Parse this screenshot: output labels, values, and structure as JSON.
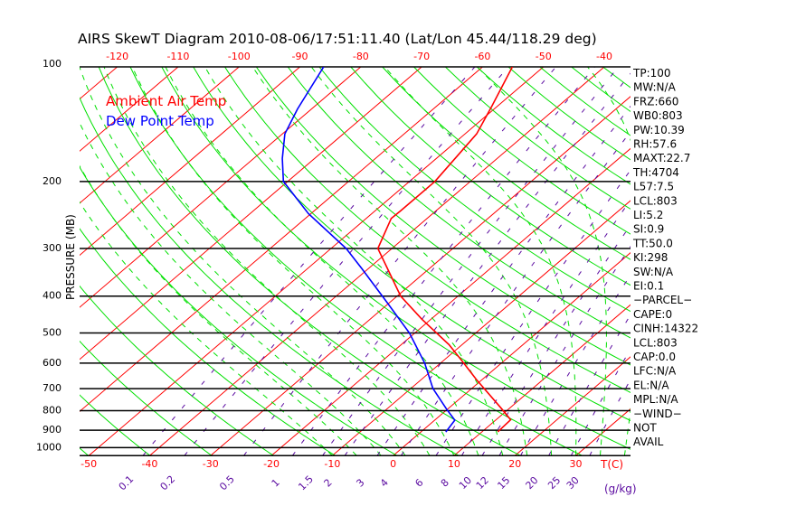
{
  "chart_data": {
    "type": "line",
    "subtype": "skew-t log-p",
    "title": "AIRS SkewT Diagram 2010-08-06/17:51:11.40 (Lat/Lon 45.44/118.29 deg)",
    "ylabel": "PRESSURE (MB)",
    "xlabel": "T(C)",
    "mixing_ratio_unit": "(g/kg)",
    "pressure_range": [
      100,
      1050
    ],
    "pressure_ticks": [
      100,
      200,
      300,
      400,
      500,
      600,
      700,
      800,
      900,
      1000
    ],
    "temp_ticks_bottom": [
      -50,
      -40,
      -30,
      -20,
      -10,
      0,
      10,
      20,
      30
    ],
    "temp_ticks_top": [
      -120,
      -110,
      -100,
      -90,
      -80,
      -70,
      -60,
      -50,
      -40
    ],
    "mixing_ratio_labels": [
      "0.1",
      "0.2",
      "0.5",
      "1",
      "1.5",
      "2",
      "3",
      "4",
      "6",
      "8",
      "10",
      "12",
      "15",
      "20",
      "25",
      "30"
    ],
    "legend": [
      {
        "label": "Ambient Air Temp",
        "color": "#ff0000"
      },
      {
        "label": "Dew Point Temp",
        "color": "#0000ff"
      }
    ],
    "legend_position": "top-left",
    "series": [
      {
        "name": "Ambient Air Temp",
        "color": "#ff0000",
        "points_p_T": [
          [
            909,
            12.6
          ],
          [
            845,
            12.4
          ],
          [
            792,
            8.9
          ],
          [
            662,
            -1.0
          ],
          [
            594,
            -6.7
          ],
          [
            537,
            -12.1
          ],
          [
            460,
            -21.5
          ],
          [
            401,
            -29.3
          ],
          [
            387,
            -30.9
          ],
          [
            300,
            -42.3
          ],
          [
            250,
            -45.9
          ],
          [
            239,
            -45.8
          ],
          [
            200,
            -45.8
          ],
          [
            172,
            -47.0
          ],
          [
            150,
            -48.1
          ],
          [
            127,
            -50.9
          ],
          [
            100,
            -55.1
          ]
        ]
      },
      {
        "name": "Dew Point Temp",
        "color": "#0000ff",
        "points_p_T": [
          [
            910,
            4.1
          ],
          [
            847,
            3.3
          ],
          [
            792,
            -0.2
          ],
          [
            699,
            -6.4
          ],
          [
            600,
            -12.6
          ],
          [
            500,
            -20.9
          ],
          [
            416,
            -30.4
          ],
          [
            338,
            -41.2
          ],
          [
            300,
            -47.5
          ],
          [
            243,
            -60.4
          ],
          [
            200,
            -70.7
          ],
          [
            174,
            -75.3
          ],
          [
            150,
            -79.6
          ],
          [
            129,
            -82.3
          ],
          [
            100,
            -86.1
          ]
        ]
      }
    ],
    "colors": {
      "isotherm": "#ff0000",
      "dry_adiabat": "#00e000",
      "moist_adiabat": "#00e000",
      "mixing_ratio": "#5a0aa0",
      "axis": "#000000"
    }
  },
  "stats": [
    "TP:100",
    "MW:N/A",
    "FRZ:660",
    "WB0:803",
    "PW:10.39",
    "RH:57.6",
    "MAXT:22.7",
    "TH:4704",
    "L57:7.5",
    "LCL:803",
    "LI:5.2",
    "SI:0.9",
    "TT:50.0",
    "KI:298",
    "SW:N/A",
    "EI:0.1",
    "−PARCEL−",
    "CAPE:0",
    "CINH:14322",
    "LCL:803",
    "CAP:0.0",
    "LFC:N/A",
    "EL:N/A",
    "MPL:N/A",
    "−WIND−",
    "NOT",
    "AVAIL"
  ]
}
